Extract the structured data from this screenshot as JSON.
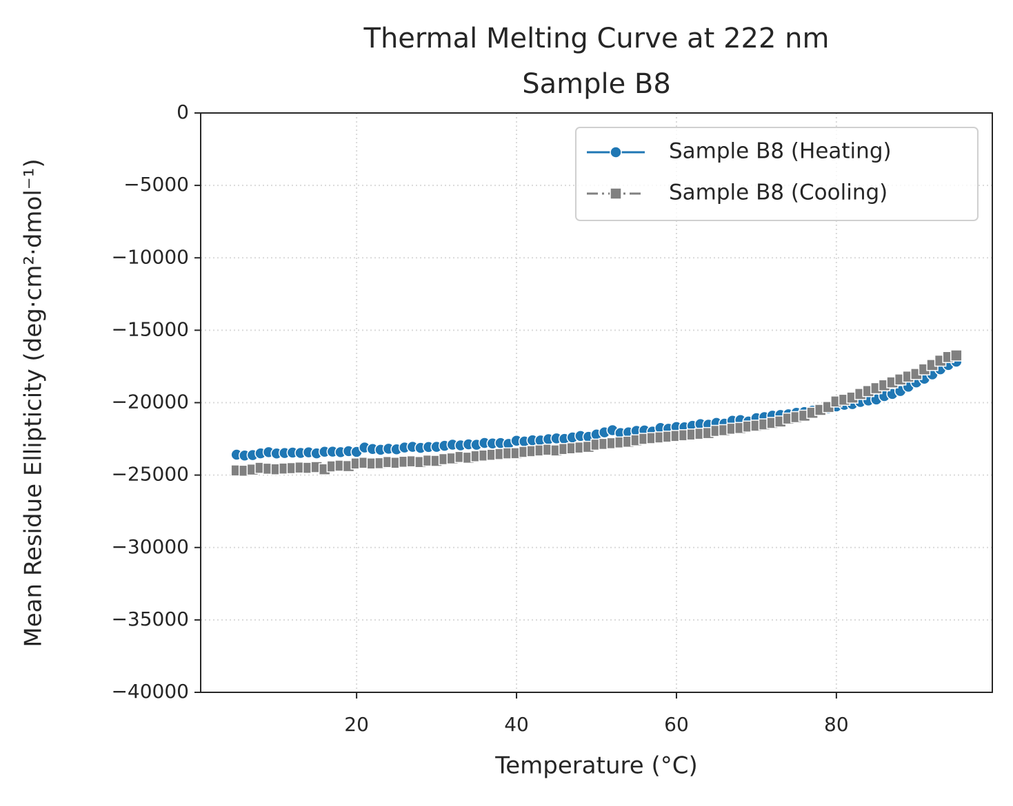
{
  "chart_data": {
    "type": "line",
    "title": "Thermal Melting Curve at 222 nm",
    "subtitle": "Sample B8",
    "xlabel": "Temperature (°C)",
    "ylabel": "Mean Residue Ellipticity (deg·cm²·dmol⁻¹)",
    "x": [
      5,
      6,
      7,
      8,
      9,
      10,
      11,
      12,
      13,
      14,
      15,
      16,
      17,
      18,
      19,
      20,
      21,
      22,
      23,
      24,
      25,
      26,
      27,
      28,
      29,
      30,
      31,
      32,
      33,
      34,
      35,
      36,
      37,
      38,
      39,
      40,
      41,
      42,
      43,
      44,
      45,
      46,
      47,
      48,
      49,
      50,
      51,
      52,
      53,
      54,
      55,
      56,
      57,
      58,
      59,
      60,
      61,
      62,
      63,
      64,
      65,
      66,
      67,
      68,
      69,
      70,
      71,
      72,
      73,
      74,
      75,
      76,
      77,
      78,
      79,
      80,
      81,
      82,
      83,
      84,
      85,
      86,
      87,
      88,
      89,
      90,
      91,
      92,
      93,
      94,
      95
    ],
    "series": [
      {
        "name": "Sample B8 (Heating)",
        "color": "#1f77b4",
        "linestyle": "solid",
        "marker": "circle",
        "values": [
          -23590,
          -23650,
          -23620,
          -23500,
          -23420,
          -23510,
          -23480,
          -23450,
          -23470,
          -23430,
          -23500,
          -23390,
          -23380,
          -23420,
          -23350,
          -23400,
          -23100,
          -23200,
          -23250,
          -23180,
          -23220,
          -23100,
          -23050,
          -23120,
          -23060,
          -23050,
          -22980,
          -22900,
          -22950,
          -22880,
          -22910,
          -22780,
          -22820,
          -22790,
          -22850,
          -22630,
          -22680,
          -22600,
          -22610,
          -22520,
          -22470,
          -22500,
          -22400,
          -22300,
          -22360,
          -22200,
          -22050,
          -21900,
          -22100,
          -22050,
          -21950,
          -21920,
          -22000,
          -21750,
          -21800,
          -21680,
          -21700,
          -21600,
          -21480,
          -21520,
          -21400,
          -21450,
          -21250,
          -21200,
          -21300,
          -21070,
          -21000,
          -20900,
          -20850,
          -20800,
          -20700,
          -20650,
          -20550,
          -20450,
          -20400,
          -20260,
          -20150,
          -20100,
          -19950,
          -19850,
          -19780,
          -19550,
          -19400,
          -19200,
          -18900,
          -18600,
          -18350,
          -18050,
          -17700,
          -17400,
          -17170
        ]
      },
      {
        "name": "Sample B8 (Cooling)",
        "color": "#808080",
        "linestyle": "dashdot",
        "marker": "square",
        "values": [
          -24680,
          -24700,
          -24620,
          -24500,
          -24560,
          -24600,
          -24550,
          -24520,
          -24480,
          -24500,
          -24450,
          -24600,
          -24400,
          -24350,
          -24380,
          -24200,
          -24150,
          -24200,
          -24180,
          -24100,
          -24150,
          -24080,
          -24050,
          -24100,
          -24000,
          -24020,
          -23900,
          -23850,
          -23750,
          -23800,
          -23700,
          -23650,
          -23600,
          -23550,
          -23500,
          -23490,
          -23400,
          -23350,
          -23300,
          -23250,
          -23300,
          -23200,
          -23150,
          -23100,
          -23050,
          -22900,
          -22850,
          -22800,
          -22750,
          -22700,
          -22600,
          -22500,
          -22450,
          -22400,
          -22350,
          -22300,
          -22250,
          -22200,
          -22150,
          -22100,
          -21950,
          -21900,
          -21800,
          -21750,
          -21650,
          -21590,
          -21500,
          -21400,
          -21300,
          -21100,
          -21000,
          -20900,
          -20700,
          -20500,
          -20300,
          -19920,
          -19800,
          -19650,
          -19400,
          -19200,
          -19000,
          -18800,
          -18600,
          -18400,
          -18200,
          -18020,
          -17700,
          -17400,
          -17100,
          -16850,
          -16740
        ]
      }
    ],
    "xlim": [
      0.5,
      99.5
    ],
    "xticks": [
      20,
      40,
      60,
      80
    ],
    "ylim": [
      -40000,
      0
    ],
    "yticks": [
      {
        "value": -40000,
        "label": "−40000"
      },
      {
        "value": -35000,
        "label": "−35000"
      },
      {
        "value": -30000,
        "label": "−30000"
      },
      {
        "value": -25000,
        "label": "−25000"
      },
      {
        "value": -20000,
        "label": "−20000"
      },
      {
        "value": -15000,
        "label": "−15000"
      },
      {
        "value": -10000,
        "label": "−10000"
      },
      {
        "value": -5000,
        "label": "−5000"
      },
      0
    ],
    "grid": true,
    "legend": "upper right"
  }
}
